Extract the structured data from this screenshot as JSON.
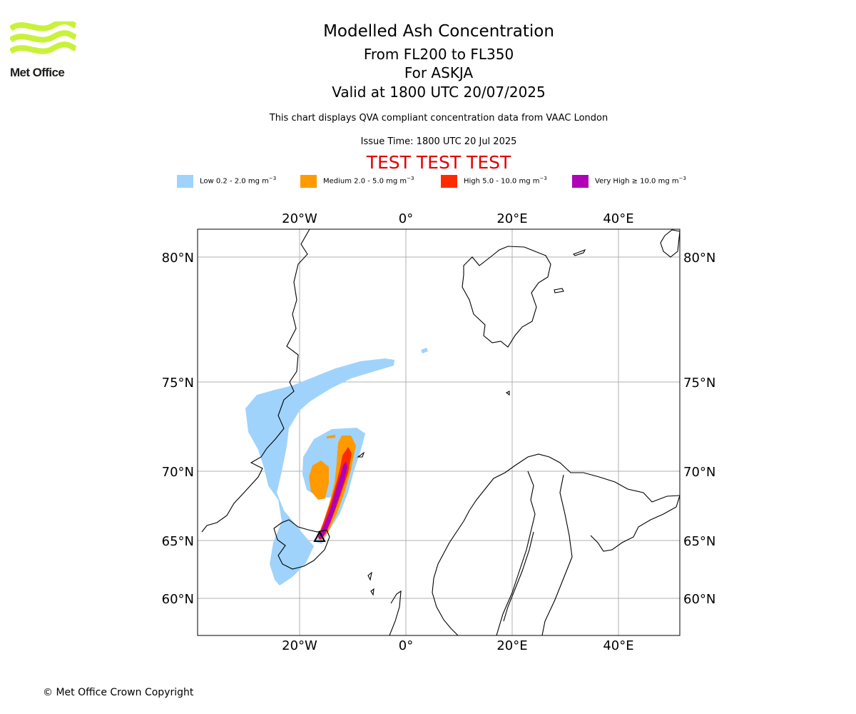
{
  "logo": {
    "text": "Met Office",
    "brand_color": "#c8f23a"
  },
  "title": {
    "line1": "Modelled Ash Concentration",
    "line2": "From FL200 to FL350",
    "line3": "For ASKJA",
    "line4": "Valid at 1800 UTC 20/07/2025"
  },
  "subtitle": "This chart displays QVA compliant concentration data from VAAC London",
  "issue_time": "Issue Time: 1800 UTC 20 Jul 2025",
  "test_banner": "TEST TEST TEST",
  "legend": [
    {
      "label": "Low 0.2 - 2.0 mg m",
      "color": "#9fd3fb"
    },
    {
      "label": "Medium 2.0 - 5.0 mg m",
      "color": "#ff9a00"
    },
    {
      "label": "High 5.0 - 10.0 mg m",
      "color": "#ff2a00"
    },
    {
      "label": "Very High ≥ 10.0 mg m",
      "color": "#b000b8"
    }
  ],
  "legend_unit_exponent": "−3",
  "map": {
    "volcano": "ASKJA",
    "lon_ticks": [
      "20°W",
      "0°",
      "20°E",
      "40°E"
    ],
    "lat_ticks": [
      "80°N",
      "75°N",
      "70°N",
      "65°N",
      "60°N"
    ],
    "gridlines": true
  },
  "footer": "© Met Office Crown Copyright"
}
